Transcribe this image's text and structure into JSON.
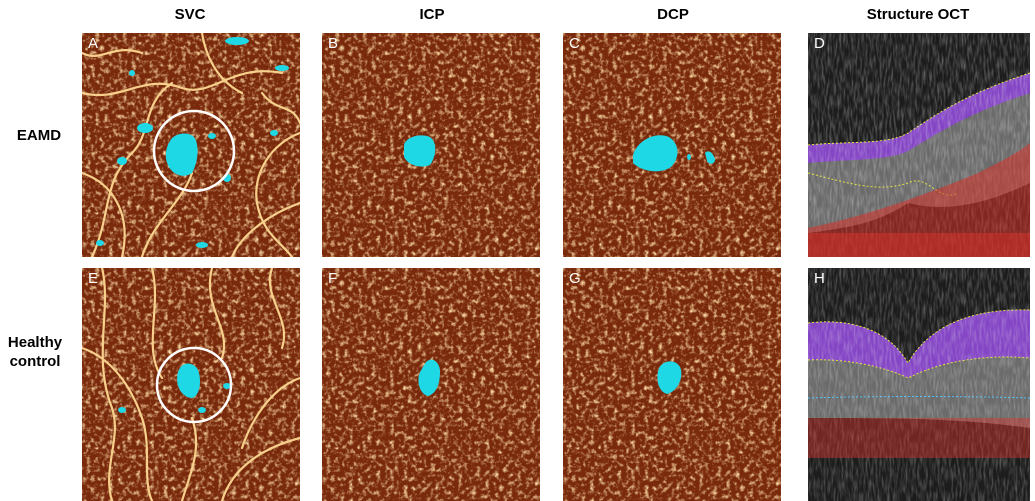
{
  "columns": [
    "SVC",
    "ICP",
    "DCP",
    "Structure OCT"
  ],
  "rows": [
    {
      "label_lines": [
        "EAMD"
      ]
    },
    {
      "label_lines": [
        "Healthy",
        "control"
      ]
    }
  ],
  "panels": [
    "A",
    "B",
    "C",
    "D",
    "E",
    "F",
    "G",
    "H"
  ],
  "colors": {
    "background": "#ffffff",
    "angio_base": "#7a2a0c",
    "vessel": "#f2c27a",
    "faz_highlight": "#1fd8e6",
    "circle": "#ffffff",
    "oct_base": "#1c1c1c",
    "oct_layer_purple": "#8a3fd6",
    "oct_red": "#d8322a"
  }
}
